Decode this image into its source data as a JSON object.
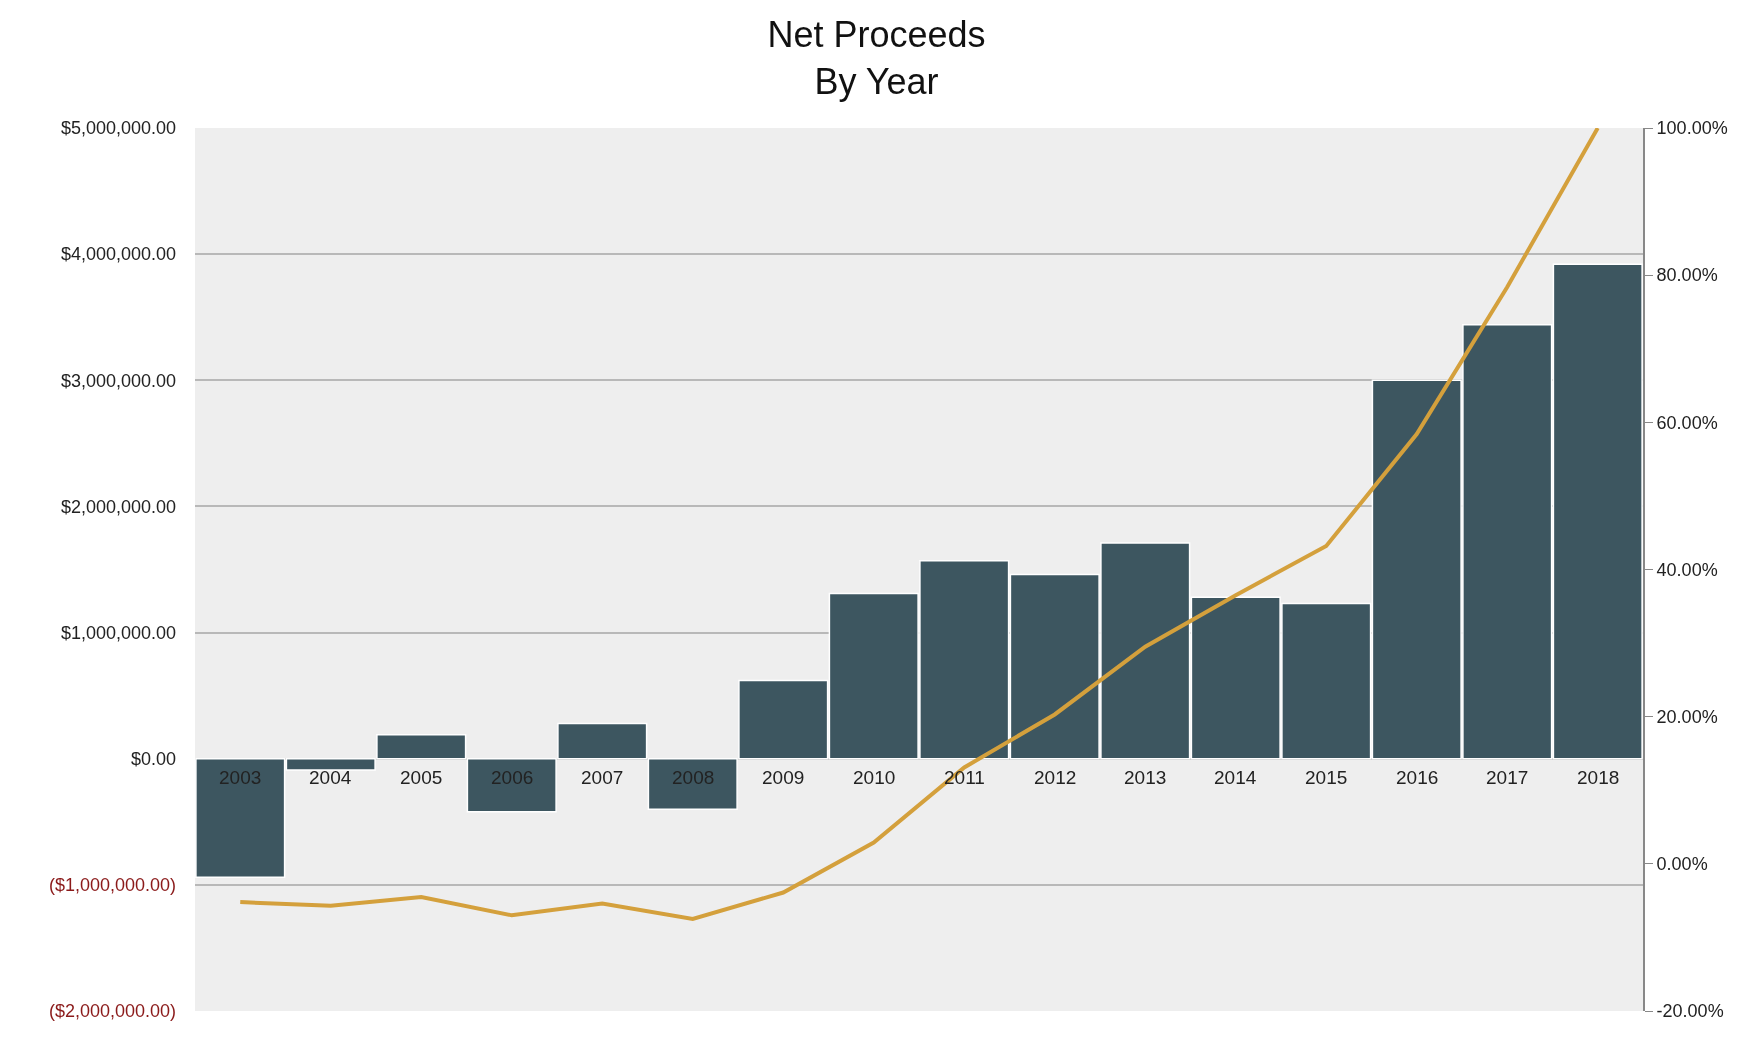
{
  "chart_data": {
    "type": "bar",
    "title": "Net Proceeds\nBy Year",
    "categories": [
      "2003",
      "2004",
      "2005",
      "2006",
      "2007",
      "2008",
      "2009",
      "2010",
      "2011",
      "2012",
      "2013",
      "2014",
      "2015",
      "2016",
      "2017",
      "2018"
    ],
    "series": [
      {
        "color": "#3d5660",
        "values": [
          -940000,
          -90000,
          190000,
          -420000,
          280000,
          -400000,
          620000,
          1310000,
          1570000,
          1460000,
          1710000,
          1280000,
          1230000,
          3000000,
          3440000,
          3920000
        ]
      },
      {
        "type": "line",
        "color": "#d4a03c",
        "axis": "y2",
        "values": [
          -5.2,
          -5.7,
          -4.5,
          -7.0,
          -5.4,
          -7.5,
          -3.9,
          2.9,
          13.1,
          20.3,
          29.5,
          36.5,
          43.2,
          58.4,
          78.4,
          100
        ]
      }
    ],
    "ylim": [
      -2000000,
      5000000
    ],
    "yticks": [
      {
        "value": -2000000,
        "label": "($2,000,000.00)"
      },
      {
        "value": -1000000,
        "label": "($1,000,000.00)"
      },
      {
        "value": 0,
        "label": "$0.00"
      },
      {
        "value": 1000000,
        "label": "$1,000,000.00"
      },
      {
        "value": 2000000,
        "label": "$2,000,000.00"
      },
      {
        "value": 3000000,
        "label": "$3,000,000.00"
      },
      {
        "value": 4000000,
        "label": "$4,000,000.00"
      },
      {
        "value": 5000000,
        "label": "$5,000,000.00"
      }
    ],
    "y2lim": [
      -20,
      100
    ],
    "y2ticks": [
      {
        "value": -20,
        "label": "-20.00%"
      },
      {
        "value": 0,
        "label": "0.00%"
      },
      {
        "value": 20,
        "label": "20.00%"
      },
      {
        "value": 40,
        "label": "40.00%"
      },
      {
        "value": 60,
        "label": "60.00%"
      },
      {
        "value": 80,
        "label": "80.00%"
      },
      {
        "value": 100,
        "label": "100.00%"
      }
    ],
    "grid": "y",
    "marker": "none",
    "line_style": "solid"
  }
}
